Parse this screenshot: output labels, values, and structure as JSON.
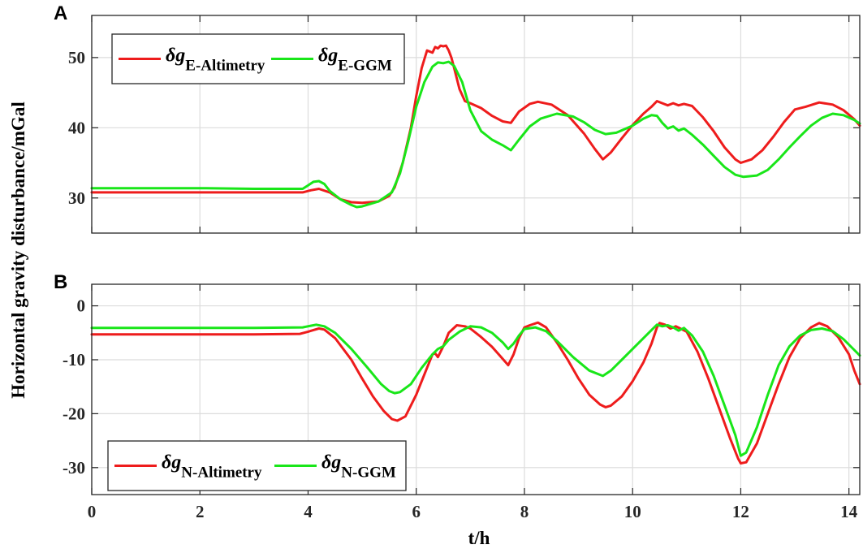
{
  "chart_data": [
    {
      "panel_label": "A",
      "type": "line",
      "xlim": [
        0,
        14.2
      ],
      "ylim": [
        25,
        56
      ],
      "xticks": [
        0,
        2,
        4,
        6,
        8,
        10,
        12,
        14
      ],
      "yticks": [
        30,
        40,
        50
      ],
      "ytick_labels": [
        "30",
        "40",
        "50"
      ],
      "grid": true,
      "legend_position": "top-left",
      "series": [
        {
          "name": "δgE-Altimetry",
          "legend_symbol": "δg",
          "legend_subscript": "E-Altimetry",
          "color": "#ee1c1c",
          "x": [
            0,
            1,
            2,
            3,
            3.9,
            4.05,
            4.2,
            4.4,
            4.6,
            4.8,
            5.0,
            5.3,
            5.5,
            5.6,
            5.75,
            5.9,
            6.0,
            6.1,
            6.2,
            6.3,
            6.35,
            6.4,
            6.45,
            6.5,
            6.55,
            6.6,
            6.65,
            6.7,
            6.8,
            6.9,
            7.0,
            7.2,
            7.4,
            7.6,
            7.75,
            7.9,
            8.1,
            8.25,
            8.5,
            8.8,
            9.1,
            9.3,
            9.45,
            9.6,
            9.8,
            10.0,
            10.2,
            10.35,
            10.45,
            10.55,
            10.65,
            10.75,
            10.85,
            10.95,
            11.1,
            11.3,
            11.5,
            11.7,
            11.9,
            12.0,
            12.2,
            12.4,
            12.6,
            12.8,
            13.0,
            13.2,
            13.45,
            13.7,
            13.9,
            14.1,
            14.2
          ],
          "y": [
            30.8,
            30.8,
            30.8,
            30.8,
            30.8,
            31.1,
            31.3,
            30.8,
            29.8,
            29.4,
            29.3,
            29.5,
            30.3,
            31.5,
            35.0,
            40.0,
            44.5,
            48.5,
            51.0,
            50.7,
            51.5,
            51.3,
            51.7,
            51.6,
            51.7,
            51.0,
            50.0,
            48.5,
            45.5,
            43.8,
            43.5,
            42.8,
            41.7,
            40.9,
            40.7,
            42.3,
            43.4,
            43.7,
            43.3,
            41.8,
            39.2,
            37.0,
            35.5,
            36.5,
            38.5,
            40.4,
            42.0,
            43.0,
            43.8,
            43.5,
            43.2,
            43.5,
            43.2,
            43.4,
            43.1,
            41.5,
            39.5,
            37.2,
            35.5,
            35.0,
            35.5,
            36.8,
            38.7,
            40.8,
            42.6,
            43.0,
            43.6,
            43.3,
            42.5,
            41.2,
            40.3
          ]
        },
        {
          "name": "δgE-GGM",
          "legend_symbol": "δg",
          "legend_subscript": "E-GGM",
          "color": "#19e619",
          "x": [
            0,
            1,
            2,
            3,
            3.9,
            4.0,
            4.1,
            4.2,
            4.3,
            4.4,
            4.6,
            4.8,
            4.9,
            5.0,
            5.3,
            5.55,
            5.7,
            5.85,
            6.0,
            6.15,
            6.3,
            6.4,
            6.5,
            6.6,
            6.7,
            6.85,
            7.0,
            7.2,
            7.4,
            7.6,
            7.75,
            7.9,
            8.1,
            8.3,
            8.6,
            8.9,
            9.1,
            9.3,
            9.5,
            9.7,
            10.0,
            10.2,
            10.35,
            10.45,
            10.55,
            10.65,
            10.75,
            10.85,
            10.95,
            11.1,
            11.3,
            11.5,
            11.7,
            11.9,
            12.05,
            12.3,
            12.5,
            12.7,
            12.9,
            13.1,
            13.3,
            13.5,
            13.7,
            13.9,
            14.1,
            14.2
          ],
          "y": [
            31.4,
            31.4,
            31.4,
            31.3,
            31.3,
            31.8,
            32.3,
            32.4,
            32.0,
            31.0,
            29.8,
            29.0,
            28.7,
            28.8,
            29.5,
            30.8,
            33.5,
            38.0,
            43.0,
            46.5,
            48.7,
            49.3,
            49.2,
            49.4,
            48.8,
            46.5,
            42.5,
            39.5,
            38.3,
            37.5,
            36.8,
            38.3,
            40.2,
            41.3,
            42.0,
            41.6,
            40.8,
            39.7,
            39.1,
            39.3,
            40.3,
            41.3,
            41.8,
            41.7,
            40.7,
            39.9,
            40.2,
            39.6,
            39.9,
            39.0,
            37.6,
            36.0,
            34.4,
            33.3,
            33.0,
            33.2,
            34.0,
            35.5,
            37.2,
            38.8,
            40.3,
            41.4,
            42.0,
            41.8,
            41.1,
            40.6
          ]
        }
      ]
    },
    {
      "panel_label": "B",
      "type": "line",
      "xlim": [
        0,
        14.2
      ],
      "ylim": [
        -35,
        4
      ],
      "xticks": [
        0,
        2,
        4,
        6,
        8,
        10,
        12,
        14
      ],
      "xtick_labels": [
        "0",
        "2",
        "4",
        "6",
        "8",
        "10",
        "12",
        "14"
      ],
      "yticks": [
        -30,
        -20,
        -10,
        0
      ],
      "ytick_labels": [
        "-30",
        "-20",
        "-10",
        "0"
      ],
      "xlabel": "t/h",
      "grid": true,
      "legend_position": "bottom-left",
      "series": [
        {
          "name": "δgN-Altimetry",
          "legend_symbol": "δg",
          "legend_subscript": "N-Altimetry",
          "color": "#ee1c1c",
          "x": [
            0,
            1,
            2,
            3,
            3.85,
            4.0,
            4.1,
            4.2,
            4.3,
            4.5,
            4.8,
            5.0,
            5.2,
            5.4,
            5.55,
            5.65,
            5.8,
            6.0,
            6.2,
            6.3,
            6.35,
            6.4,
            6.5,
            6.6,
            6.75,
            6.9,
            7.0,
            7.2,
            7.4,
            7.55,
            7.7,
            7.8,
            7.9,
            8.0,
            8.1,
            8.25,
            8.4,
            8.6,
            8.8,
            9.0,
            9.2,
            9.4,
            9.5,
            9.6,
            9.8,
            10.0,
            10.2,
            10.35,
            10.45,
            10.5,
            10.6,
            10.7,
            10.8,
            10.9,
            11.0,
            11.2,
            11.4,
            11.6,
            11.8,
            11.95,
            12.0,
            12.1,
            12.3,
            12.5,
            12.7,
            12.9,
            13.1,
            13.3,
            13.45,
            13.6,
            13.8,
            14.0,
            14.1,
            14.2
          ],
          "y": [
            -5.3,
            -5.3,
            -5.3,
            -5.3,
            -5.2,
            -4.8,
            -4.5,
            -4.2,
            -4.4,
            -6.0,
            -10.0,
            -13.5,
            -16.8,
            -19.5,
            -21.0,
            -21.3,
            -20.5,
            -16.5,
            -11.5,
            -9.0,
            -8.8,
            -9.5,
            -7.5,
            -5.0,
            -3.6,
            -3.8,
            -4.2,
            -5.8,
            -7.6,
            -9.3,
            -11.0,
            -9.0,
            -6.0,
            -4.0,
            -3.6,
            -3.1,
            -4.0,
            -6.8,
            -10.0,
            -13.5,
            -16.5,
            -18.3,
            -18.8,
            -18.5,
            -16.8,
            -14.0,
            -10.5,
            -7.0,
            -4.0,
            -3.2,
            -3.5,
            -4.2,
            -3.8,
            -4.3,
            -4.8,
            -8.5,
            -13.5,
            -19.0,
            -24.5,
            -28.3,
            -29.2,
            -29.0,
            -25.5,
            -20.0,
            -14.5,
            -9.5,
            -6.0,
            -4.0,
            -3.2,
            -3.8,
            -5.8,
            -9.0,
            -12.0,
            -14.5
          ]
        },
        {
          "name": "δgN-GGM",
          "legend_symbol": "δg",
          "legend_subscript": "N-GGM",
          "color": "#19e619",
          "x": [
            0,
            1,
            2,
            3,
            3.9,
            4.05,
            4.15,
            4.3,
            4.5,
            4.8,
            5.1,
            5.35,
            5.5,
            5.6,
            5.7,
            5.9,
            6.1,
            6.3,
            6.4,
            6.5,
            6.6,
            6.8,
            7.0,
            7.2,
            7.4,
            7.6,
            7.7,
            7.8,
            7.9,
            8.0,
            8.2,
            8.4,
            8.6,
            8.9,
            9.2,
            9.45,
            9.6,
            9.8,
            10.0,
            10.2,
            10.35,
            10.45,
            10.55,
            10.65,
            10.75,
            10.85,
            10.95,
            11.1,
            11.3,
            11.5,
            11.7,
            11.9,
            12.0,
            12.1,
            12.3,
            12.5,
            12.7,
            12.9,
            13.1,
            13.3,
            13.5,
            13.7,
            13.9,
            14.1,
            14.2
          ],
          "y": [
            -4.1,
            -4.1,
            -4.1,
            -4.1,
            -4.0,
            -3.7,
            -3.5,
            -3.8,
            -5.0,
            -8.0,
            -11.5,
            -14.5,
            -15.8,
            -16.2,
            -16.0,
            -14.5,
            -11.5,
            -9.0,
            -8.0,
            -7.5,
            -6.3,
            -4.8,
            -3.8,
            -4.0,
            -5.0,
            -6.8,
            -8.0,
            -7.0,
            -5.5,
            -4.3,
            -4.0,
            -4.7,
            -6.5,
            -9.5,
            -12.0,
            -13.0,
            -12.0,
            -10.0,
            -8.0,
            -6.0,
            -4.5,
            -3.5,
            -3.8,
            -3.6,
            -4.0,
            -4.6,
            -4.1,
            -5.5,
            -8.5,
            -13.0,
            -18.5,
            -24.0,
            -27.8,
            -27.2,
            -22.5,
            -16.5,
            -11.0,
            -7.5,
            -5.5,
            -4.5,
            -4.2,
            -4.7,
            -6.2,
            -8.2,
            -9.2
          ]
        }
      ]
    }
  ],
  "shared_ylabel": "Horizontal gravity disturbance/mGal"
}
